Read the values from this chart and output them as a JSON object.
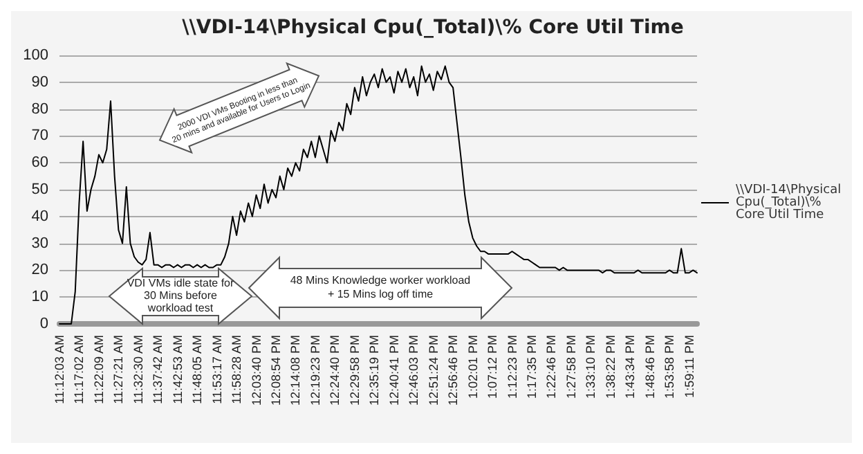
{
  "chart_data": {
    "type": "line",
    "title": "\\\\VDI-14\\Physical Cpu(_Total)\\% Core Util Time",
    "categories": [
      "11:12:03 AM",
      null,
      null,
      null,
      null,
      "11:17:02 AM",
      null,
      null,
      null,
      null,
      "11:22:09 AM",
      null,
      null,
      null,
      null,
      "11:27:21 AM",
      null,
      null,
      null,
      null,
      "11:32:30 AM",
      null,
      null,
      null,
      null,
      "11:37:42 AM",
      null,
      null,
      null,
      null,
      "11:42:53 AM",
      null,
      null,
      null,
      null,
      "11:48:05 AM",
      null,
      null,
      null,
      null,
      "11:53:17 AM",
      null,
      null,
      null,
      null,
      "11:58:28 AM",
      null,
      null,
      null,
      null,
      "12:03:40 PM",
      null,
      null,
      null,
      null,
      "12:08:54 PM",
      null,
      null,
      null,
      null,
      "12:14:08 PM",
      null,
      null,
      null,
      null,
      "12:19:23 PM",
      null,
      null,
      null,
      null,
      "12:24:40 PM",
      null,
      null,
      null,
      null,
      "12:29:58 PM",
      null,
      null,
      null,
      null,
      "12:35:19 PM",
      null,
      null,
      null,
      null,
      "12:40:41 PM",
      null,
      null,
      null,
      null,
      "12:46:03 PM",
      null,
      null,
      null,
      null,
      "12:51:24 PM",
      null,
      null,
      null,
      null,
      "12:56:46 PM",
      null,
      null,
      null,
      null,
      "1:02:01 PM",
      null,
      null,
      null,
      null,
      "1:07:12 PM",
      null,
      null,
      null,
      null,
      "1:12:23 PM",
      null,
      null,
      null,
      null,
      "1:17:35 PM",
      null,
      null,
      null,
      null,
      "1:22:46 PM",
      null,
      null,
      null,
      null,
      "1:27:58 PM",
      null,
      null,
      null,
      null,
      "1:33:10 PM",
      null,
      null,
      null,
      null,
      "1:38:22 PM",
      null,
      null,
      null,
      null,
      "1:43:34 PM",
      null,
      null,
      null,
      null,
      "1:48:46 PM",
      null,
      null,
      null,
      null,
      "1:53:58 PM",
      null,
      null,
      null,
      null,
      "1:59:11 PM",
      null,
      null
    ],
    "series": [
      {
        "name": "\\\\VDI-14\\Physical Cpu(_Total)\\% Core Util Time",
        "color": "#000000",
        "values": [
          0,
          0,
          0,
          0,
          12,
          45,
          68,
          42,
          50,
          55,
          63,
          60,
          65,
          83,
          55,
          35,
          30,
          51,
          30,
          25,
          23,
          22,
          24,
          34,
          22,
          22,
          21,
          22,
          22,
          21,
          22,
          21,
          22,
          22,
          21,
          22,
          21,
          22,
          21,
          21,
          22,
          22,
          25,
          30,
          40,
          33,
          42,
          38,
          45,
          40,
          48,
          43,
          52,
          45,
          50,
          47,
          55,
          50,
          58,
          55,
          60,
          57,
          65,
          62,
          68,
          62,
          70,
          65,
          60,
          72,
          68,
          75,
          72,
          82,
          78,
          88,
          83,
          92,
          85,
          90,
          93,
          88,
          95,
          90,
          92,
          86,
          94,
          90,
          95,
          88,
          92,
          85,
          96,
          90,
          93,
          87,
          94,
          91,
          96,
          90,
          88,
          75,
          62,
          48,
          38,
          32,
          29,
          27,
          27,
          26,
          26,
          26,
          26,
          26,
          26,
          27,
          26,
          25,
          24,
          24,
          23,
          22,
          21,
          21,
          21,
          21,
          21,
          20,
          21,
          20,
          20,
          20,
          20,
          20,
          20,
          20,
          20,
          20,
          19,
          20,
          20,
          19,
          19,
          19,
          19,
          19,
          19,
          20,
          19,
          19,
          19,
          19,
          19,
          19,
          19,
          20,
          19,
          19,
          28,
          19,
          19,
          20,
          19
        ]
      }
    ],
    "ylim": [
      0,
      100
    ],
    "yticks": [
      0,
      10,
      20,
      30,
      40,
      50,
      60,
      70,
      80,
      90,
      100
    ],
    "grid": "y",
    "legend": "right",
    "marker": "none",
    "line_style": "solid",
    "annotations": [
      "2000 VDI VMs Booting in less than\n20 mins and available for Users to Login",
      "VDI VMs idle state for\n30 Mins before\nworkload test",
      "48 Mins Knowledge worker workload\n+ 15 Mins log off time"
    ]
  }
}
